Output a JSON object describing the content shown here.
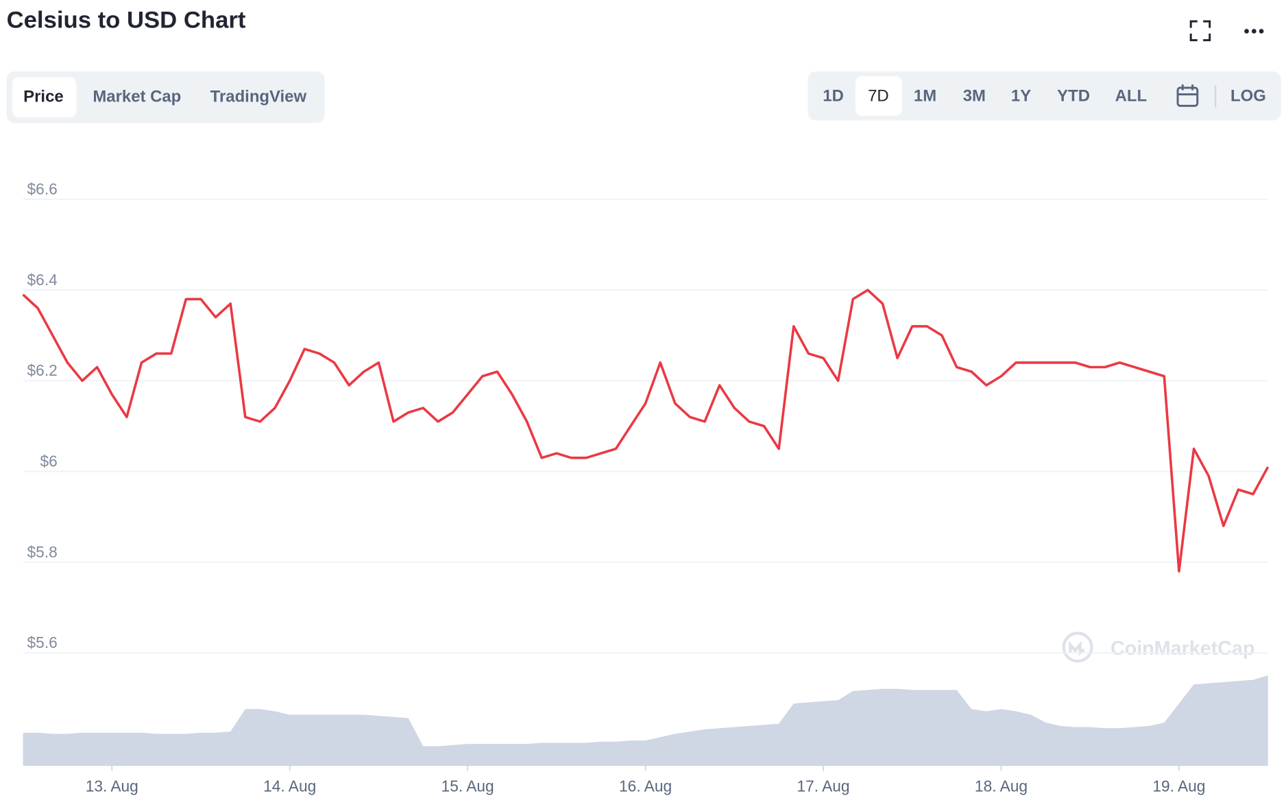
{
  "chart_data": {
    "type": "line",
    "title": "Celsius to USD Chart",
    "tabs": [
      "Price",
      "Market Cap",
      "TradingView"
    ],
    "ranges": [
      "1D",
      "7D",
      "1M",
      "3M",
      "1Y",
      "YTD",
      "ALL"
    ],
    "log_label": "LOG",
    "watermark": "CoinMarketCap",
    "categories": [
      null,
      null,
      null,
      null,
      null,
      null,
      "13. Aug",
      null,
      null,
      null,
      null,
      null,
      null,
      null,
      null,
      null,
      null,
      null,
      "14. Aug",
      null,
      null,
      null,
      null,
      null,
      null,
      null,
      null,
      null,
      null,
      null,
      "15. Aug",
      null,
      null,
      null,
      null,
      null,
      null,
      null,
      null,
      null,
      null,
      null,
      "16. Aug",
      null,
      null,
      null,
      null,
      null,
      null,
      null,
      null,
      null,
      null,
      null,
      "17. Aug",
      null,
      null,
      null,
      null,
      null,
      null,
      null,
      null,
      null,
      null,
      null,
      "18. Aug",
      null,
      null,
      null,
      null,
      null,
      null,
      null,
      null,
      null,
      null,
      null,
      "19. Aug",
      null,
      null,
      null,
      null,
      null,
      null
    ],
    "series": [
      {
        "color": "#ea3943",
        "values": [
          6.39,
          6.36,
          6.3,
          6.24,
          6.2,
          6.23,
          6.17,
          6.12,
          6.24,
          6.26,
          6.26,
          6.38,
          6.38,
          6.34,
          6.37,
          6.12,
          6.11,
          6.14,
          6.2,
          6.27,
          6.26,
          6.24,
          6.19,
          6.22,
          6.24,
          6.11,
          6.13,
          6.14,
          6.11,
          6.13,
          6.17,
          6.21,
          6.22,
          6.17,
          6.11,
          6.03,
          6.04,
          6.03,
          6.03,
          6.04,
          6.05,
          6.1,
          6.15,
          6.24,
          6.15,
          6.12,
          6.11,
          6.19,
          6.14,
          6.11,
          6.1,
          6.05,
          6.32,
          6.26,
          6.25,
          6.2,
          6.38,
          6.4,
          6.37,
          6.25,
          6.32,
          6.32,
          6.3,
          6.23,
          6.22,
          6.19,
          6.21,
          6.24,
          6.24,
          6.24,
          6.24,
          6.24,
          6.23,
          6.23,
          6.24,
          6.23,
          6.22,
          6.21,
          5.78,
          6.05,
          5.99,
          5.88,
          5.96,
          5.95,
          6.01
        ]
      }
    ],
    "volume": {
      "color": "#cfd6e4",
      "ylim": [
        0,
        100
      ],
      "values": [
        29,
        29,
        28,
        28,
        29,
        29,
        29,
        29,
        29,
        28,
        28,
        28,
        29,
        29,
        30,
        50,
        50,
        48,
        45,
        45,
        45,
        45,
        45,
        45,
        44,
        43,
        42,
        17,
        17,
        18,
        19,
        19,
        19,
        19,
        19,
        20,
        20,
        20,
        20,
        21,
        21,
        22,
        22,
        25,
        28,
        30,
        32,
        33,
        34,
        35,
        36,
        37,
        55,
        56,
        57,
        58,
        66,
        67,
        68,
        68,
        67,
        67,
        67,
        67,
        50,
        48,
        50,
        48,
        45,
        38,
        35,
        34,
        34,
        33,
        33,
        34,
        35,
        38,
        55,
        72,
        73,
        74,
        75,
        76,
        80
      ]
    },
    "ylim": [
      5.6,
      6.6
    ],
    "yticks": [
      {
        "value": 5.6,
        "label": "$5.6"
      },
      {
        "value": 5.8,
        "label": "$5.8"
      },
      {
        "value": 6,
        "label": "$6"
      },
      {
        "value": 6.2,
        "label": "$6.2"
      },
      {
        "value": 6.4,
        "label": "$6.4"
      },
      {
        "value": 6.6,
        "label": "$6.6"
      }
    ],
    "grid": true
  }
}
